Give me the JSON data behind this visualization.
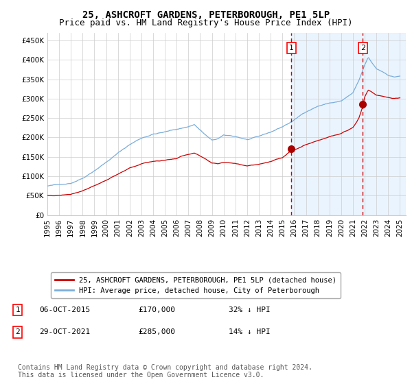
{
  "title": "25, ASHCROFT GARDENS, PETERBOROUGH, PE1 5LP",
  "subtitle": "Price paid vs. HM Land Registry's House Price Index (HPI)",
  "ylim": [
    0,
    470000
  ],
  "yticks": [
    0,
    50000,
    100000,
    150000,
    200000,
    250000,
    300000,
    350000,
    400000,
    450000
  ],
  "ytick_labels": [
    "£0",
    "£50K",
    "£100K",
    "£150K",
    "£200K",
    "£250K",
    "£300K",
    "£350K",
    "£400K",
    "£450K"
  ],
  "hpi_color": "#7aadda",
  "price_color": "#cc0000",
  "marker_color": "#aa0000",
  "bg_shade_color": "#ddeeff",
  "vline_color": "#cc0000",
  "grid_color": "#cccccc",
  "transaction1_date": 2015.77,
  "transaction1_price": 170000,
  "transaction2_date": 2021.83,
  "transaction2_price": 285000,
  "legend_label1": "25, ASHCROFT GARDENS, PETERBOROUGH, PE1 5LP (detached house)",
  "legend_label2": "HPI: Average price, detached house, City of Peterborough",
  "note1_index": "1",
  "note1_date": "06-OCT-2015",
  "note1_price": "£170,000",
  "note1_pct": "32% ↓ HPI",
  "note2_index": "2",
  "note2_date": "29-OCT-2021",
  "note2_price": "£285,000",
  "note2_pct": "14% ↓ HPI",
  "footnote": "Contains HM Land Registry data © Crown copyright and database right 2024.\nThis data is licensed under the Open Government Licence v3.0.",
  "title_fontsize": 10,
  "subtitle_fontsize": 9,
  "tick_fontsize": 7.5,
  "legend_fontsize": 7.5,
  "note_fontsize": 8,
  "footnote_fontsize": 7
}
